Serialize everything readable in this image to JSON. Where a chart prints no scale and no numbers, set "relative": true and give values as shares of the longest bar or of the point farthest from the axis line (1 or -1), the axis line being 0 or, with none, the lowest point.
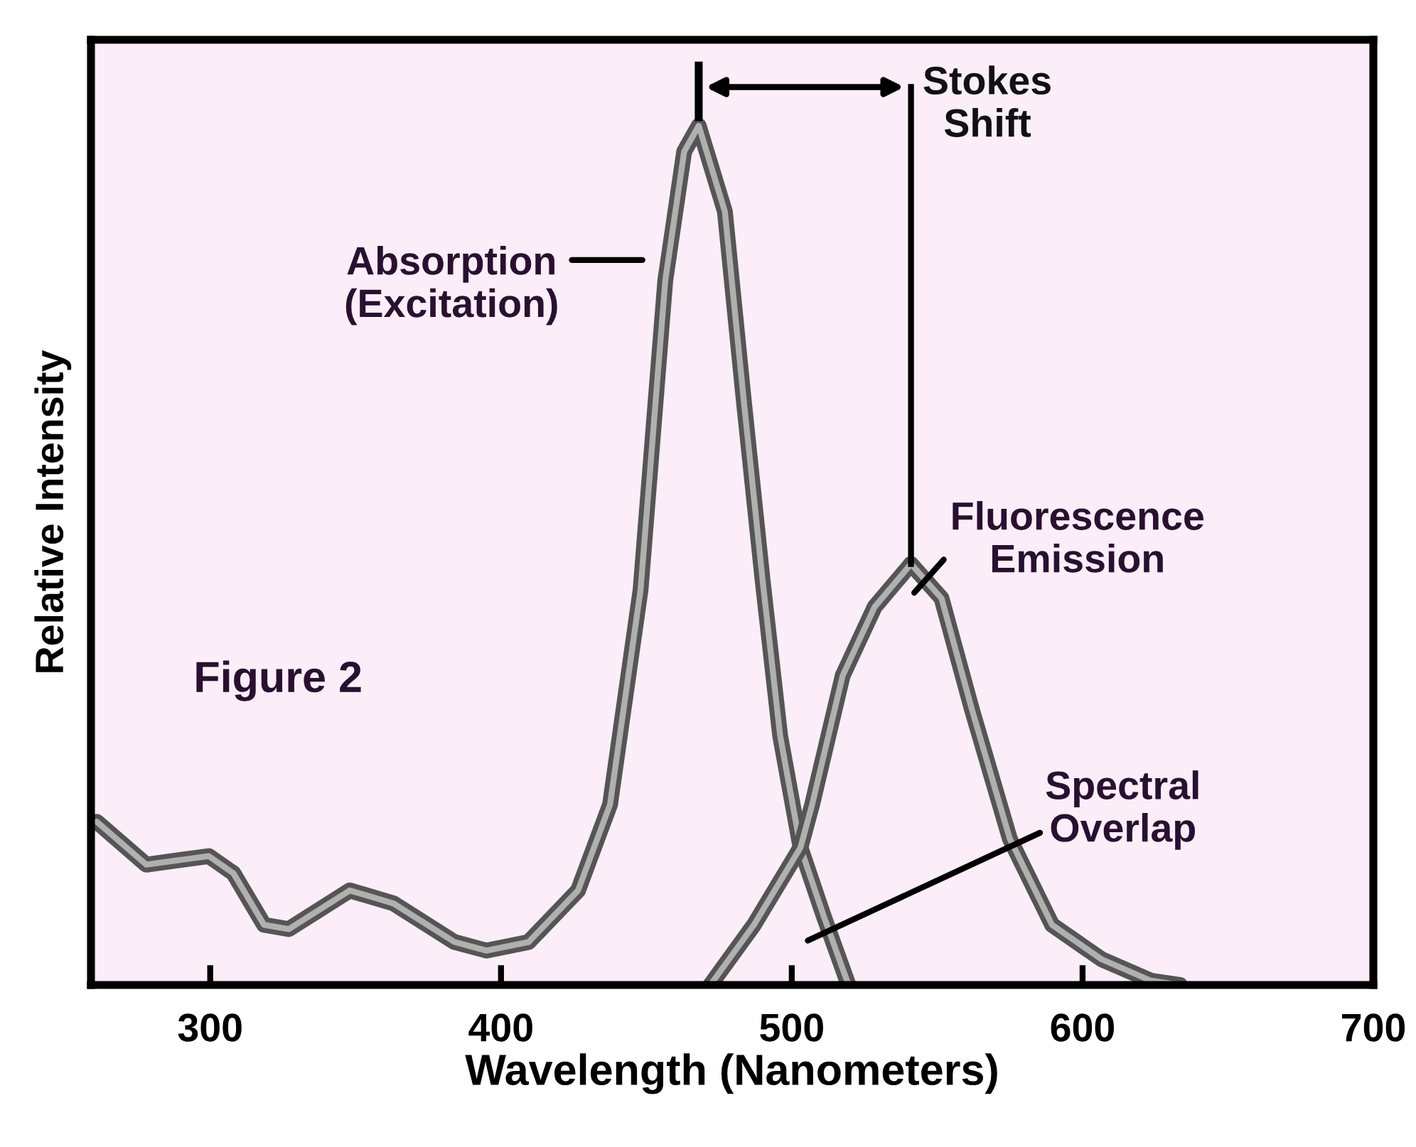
{
  "chart_data": {
    "type": "line",
    "relative": true,
    "xlabel": "Wavelength (Nanometers)",
    "ylabel": "Relative Intensity",
    "xlim": [
      259,
      700
    ],
    "xticks": [
      300,
      400,
      500,
      600,
      700
    ],
    "marker": "none",
    "line_style": "solid",
    "series": [
      {
        "color": "#b0b0b0",
        "x": [
          261,
          278,
          299.5,
          308,
          318.5,
          327,
          348,
          363,
          384,
          395,
          409.5,
          426.5,
          437.5,
          448,
          456.5,
          463,
          468,
          477,
          483.5,
          490,
          496,
          503,
          511,
          519.5
        ],
        "values": [
          0.19,
          0.14,
          0.15,
          0.13,
          0.07,
          0.065,
          0.11,
          0.095,
          0.05,
          0.04,
          0.05,
          0.11,
          0.21,
          0.46,
          0.82,
          0.97,
          1.0,
          0.9,
          0.68,
          0.47,
          0.29,
          0.16,
          0.08,
          0.0
        ]
      },
      {
        "color": "#b0b0b0",
        "x": [
          472,
          487,
          503,
          507,
          517.5,
          528.5,
          541,
          551.5,
          562,
          575,
          589.5,
          606.5,
          623.5,
          633.5
        ],
        "values": [
          0.0,
          0.07,
          0.16,
          0.21,
          0.36,
          0.44,
          0.49,
          0.45,
          0.32,
          0.17,
          0.07,
          0.03,
          0.005,
          0.0
        ]
      }
    ],
    "annotations": [
      "Absorption\n(Excitation)",
      {
        "text": "Stokes\nShift",
        "x": 541,
        "y": 0.49
      },
      "Fluorescence\nEmission",
      "Spectral\nOverlap",
      "Figure 2"
    ]
  }
}
